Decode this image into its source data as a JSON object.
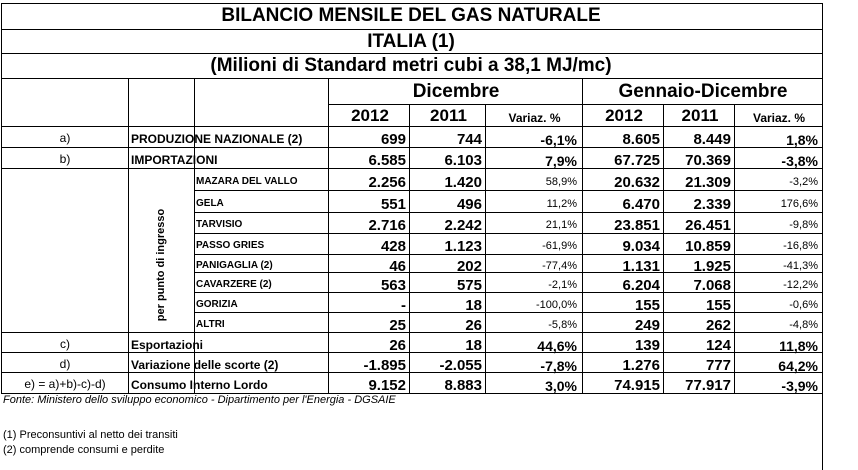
{
  "title": "BILANCIO MENSILE DEL GAS NATURALE",
  "country": "ITALIA (1)",
  "unit": "(Milioni di Standard metri cubi a 38,1 MJ/mc)",
  "headers": {
    "month": "Dicembre",
    "ytd": "Gennaio-Dicembre",
    "y1": "2012",
    "y2": "2011",
    "var": "Variaz. %",
    "var2": "Variaz. %"
  },
  "side_label": "per punto di ingresso",
  "rows": [
    {
      "letter": "a)",
      "label": "PRODUZIONE NAZIONALE (2)",
      "v2012": "699",
      "v2011": "744",
      "var": "-6,1%",
      "y2012": "8.605",
      "y2011": "8.449",
      "yvar": "1,8%"
    },
    {
      "letter": "b)",
      "label": "IMPORTAZIONI",
      "v2012": "6.585",
      "v2011": "6.103",
      "var": "7,9%",
      "y2012": "67.725",
      "y2011": "70.369",
      "yvar": "-3,8%"
    },
    {
      "letter": "",
      "label": "MAZARA DEL VALLO",
      "v2012": "2.256",
      "v2011": "1.420",
      "var": "58,9%",
      "y2012": "20.632",
      "y2011": "21.309",
      "yvar": "-3,2%"
    },
    {
      "letter": "",
      "label": "GELA",
      "v2012": "551",
      "v2011": "496",
      "var": "11,2%",
      "y2012": "6.470",
      "y2011": "2.339",
      "yvar": "176,6%"
    },
    {
      "letter": "",
      "label": "TARVISIO",
      "v2012": "2.716",
      "v2011": "2.242",
      "var": "21,1%",
      "y2012": "23.851",
      "y2011": "26.451",
      "yvar": "-9,8%"
    },
    {
      "letter": "",
      "label": "PASSO GRIES",
      "v2012": "428",
      "v2011": "1.123",
      "var": "-61,9%",
      "y2012": "9.034",
      "y2011": "10.859",
      "yvar": "-16,8%"
    },
    {
      "letter": "",
      "label": "PANIGAGLIA (2)",
      "v2012": "46",
      "v2011": "202",
      "var": "-77,4%",
      "y2012": "1.131",
      "y2011": "1.925",
      "yvar": "-41,3%"
    },
    {
      "letter": "",
      "label": "CAVARZERE (2)",
      "v2012": "563",
      "v2011": "575",
      "var": "-2,1%",
      "y2012": "6.204",
      "y2011": "7.068",
      "yvar": "-12,2%"
    },
    {
      "letter": "",
      "label": "GORIZIA",
      "v2012": "-",
      "v2011": "18",
      "var": "-100,0%",
      "y2012": "155",
      "y2011": "155",
      "yvar": "-0,6%"
    },
    {
      "letter": "",
      "label": "ALTRI",
      "v2012": "25",
      "v2011": "26",
      "var": "-5,8%",
      "y2012": "249",
      "y2011": "262",
      "yvar": "-4,8%"
    },
    {
      "letter": "c)",
      "label": "Esportazioni",
      "v2012": "26",
      "v2011": "18",
      "var": "44,6%",
      "y2012": "139",
      "y2011": "124",
      "yvar": "11,8%"
    },
    {
      "letter": "d)",
      "label": "Variazione delle scorte (2)",
      "v2012": "-1.895",
      "v2011": "-2.055",
      "var": "-7,8%",
      "y2012": "1.276",
      "y2011": "777",
      "yvar": "64,2%"
    },
    {
      "letter": "e) = a)+b)-c)-d)",
      "label": "Consumo Interno Lordo",
      "v2012": "9.152",
      "v2011": "8.883",
      "var": "3,0%",
      "y2012": "74.915",
      "y2011": "77.917",
      "yvar": "-3,9%"
    }
  ],
  "source": "Fonte: Ministero dello sviluppo economico - Dipartimento per l'Energia - DGSAIE",
  "notes": [
    "(1) Preconsuntivi al netto dei transiti",
    "(2) comprende consumi e perdite"
  ]
}
